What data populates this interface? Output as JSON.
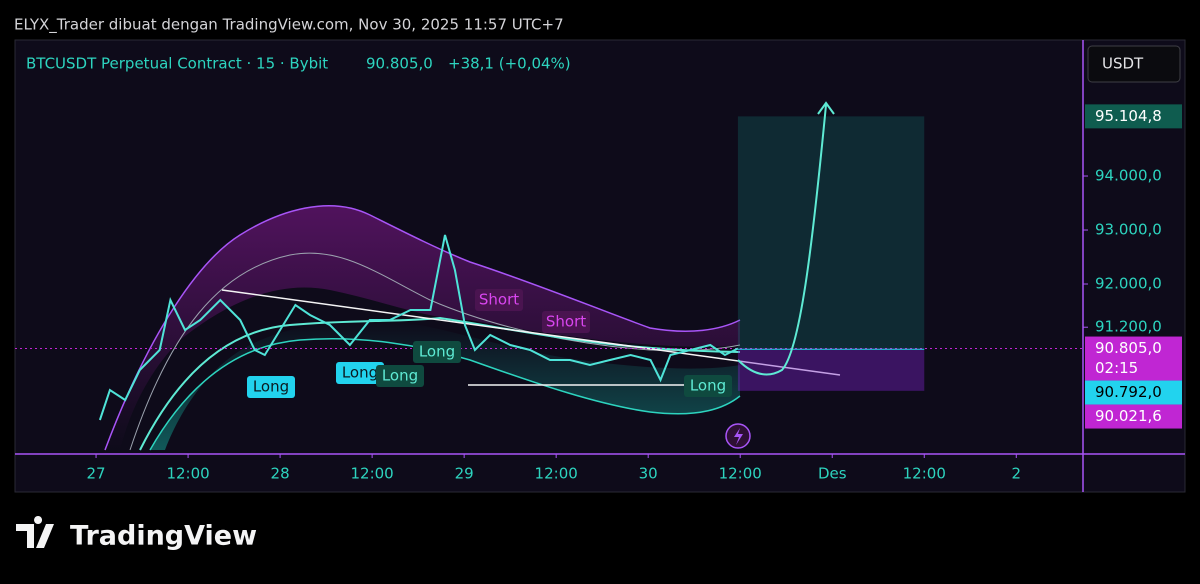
{
  "header": {
    "text": "ELYX_Trader dibuat dengan TradingView.com, Nov 30, 2025 11:57 UTC+7"
  },
  "symbol": {
    "name": "BTCUSDT Perpetual Contract · 15 · Bybit",
    "price": "90.805,0",
    "change": "+38,1 (+0,04%)"
  },
  "currency": "USDT",
  "brand": "TradingView",
  "chart_data": {
    "type": "line",
    "color": "#4fe3d8",
    "x": [
      0.5,
      1.8,
      3.8,
      5.7,
      8.3,
      9.7,
      11.6,
      13.6,
      16.2,
      18.8,
      20.7,
      22.0,
      24.0,
      26.0,
      27.9,
      30.5,
      33.1,
      35.7,
      38.3,
      41.0,
      43.6,
      45.5,
      46.8,
      48.1,
      49.4,
      51.4,
      54.0,
      56.6,
      59.2,
      61.8,
      64.4,
      67.0,
      69.7,
      72.3,
      73.6,
      74.9,
      77.5,
      80.1,
      82.0,
      83.7
    ],
    "values": [
      89481,
      90037,
      89852,
      90407,
      90778,
      91704,
      91148,
      91333,
      91704,
      91333,
      90778,
      90685,
      91148,
      91611,
      91426,
      91241,
      90870,
      91333,
      91333,
      91519,
      91519,
      92907,
      92259,
      91241,
      90778,
      91056,
      90870,
      90778,
      90593,
      90593,
      90500,
      90593,
      90685,
      90593,
      90222,
      90685,
      90778,
      90870,
      90685,
      90805
    ],
    "xlim": [
      -10.57,
      128.7
    ],
    "xticks": [
      {
        "value": 0,
        "label": "27"
      },
      {
        "value": 12,
        "label": "12:00"
      },
      {
        "value": 24,
        "label": "28"
      },
      {
        "value": 36,
        "label": "12:00"
      },
      {
        "value": 48,
        "label": "29"
      },
      {
        "value": 60,
        "label": "12:00"
      },
      {
        "value": 72,
        "label": "30"
      },
      {
        "value": 84,
        "label": "12:00"
      },
      {
        "value": 96,
        "label": "Des"
      },
      {
        "value": 108,
        "label": "12:00"
      },
      {
        "value": 120,
        "label": "2"
      }
    ],
    "ylim": [
      88852,
      96519
    ],
    "yticks": [
      {
        "value": 94000,
        "label": "94.000,0"
      },
      {
        "value": 93000,
        "label": "93.000,0"
      },
      {
        "value": 92000,
        "label": "92.000,0"
      },
      {
        "value": 91200,
        "label": "91.200,0"
      }
    ],
    "price_labels": [
      {
        "value": 95104.8,
        "label": "95.104,8",
        "color": "#0f5c4f"
      },
      {
        "value": 90805,
        "label": "90.805,0",
        "color": "#c026d3"
      },
      {
        "value": 90792,
        "label": "90.792,0",
        "color": "#22d3ee"
      },
      {
        "value": 90021.6,
        "label": "90.021,6",
        "color": "#c026d3"
      }
    ],
    "countdown": "02:15",
    "annotations": [
      "Long",
      "Long",
      "Long",
      "Long",
      "Short",
      "Short",
      "Long"
    ]
  }
}
